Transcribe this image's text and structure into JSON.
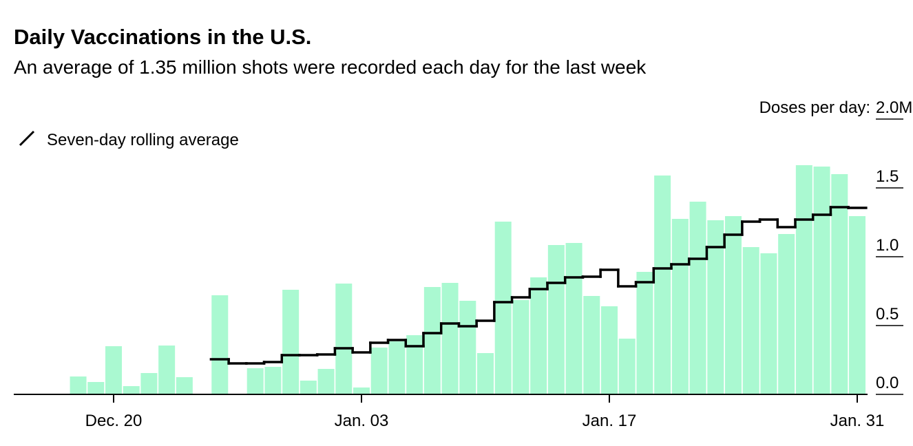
{
  "chart_data": {
    "type": "bar",
    "title": "Daily Vaccinations in the U.S.",
    "subtitle": "An average of 1.35 million shots were recorded each day for the last week",
    "y_axis_label": "Doses per day:",
    "categories": [
      null,
      null,
      "Dec. 20",
      null,
      null,
      null,
      null,
      null,
      null,
      null,
      null,
      null,
      null,
      null,
      null,
      null,
      "Jan. 03",
      null,
      null,
      null,
      null,
      null,
      null,
      null,
      null,
      null,
      null,
      null,
      null,
      null,
      "Jan. 17",
      null,
      null,
      null,
      null,
      null,
      null,
      null,
      null,
      null,
      null,
      null,
      null,
      null,
      "Jan. 31"
    ],
    "series": [
      {
        "type": "bar",
        "color": "#aaf9d1",
        "values": [
          0.13,
          0.09,
          0.35,
          0.06,
          0.155,
          0.355,
          0.125,
          null,
          0.72,
          null,
          0.19,
          0.2,
          0.76,
          0.1,
          0.185,
          0.805,
          0.05,
          0.34,
          0.385,
          0.43,
          0.78,
          0.81,
          0.68,
          0.3,
          1.255,
          0.685,
          0.85,
          1.085,
          1.1,
          0.715,
          0.64,
          0.405,
          0.89,
          1.59,
          1.275,
          1.4,
          1.265,
          1.295,
          1.07,
          1.025,
          1.165,
          1.665,
          1.655,
          1.6,
          1.295
        ]
      },
      {
        "type": "step",
        "name": "Seven-day rolling average",
        "color": "#000000",
        "values": [
          null,
          null,
          null,
          null,
          null,
          null,
          null,
          null,
          0.255,
          0.225,
          0.225,
          0.235,
          0.285,
          0.285,
          0.29,
          0.335,
          0.305,
          0.375,
          0.395,
          0.35,
          0.445,
          0.515,
          0.495,
          0.535,
          0.67,
          0.705,
          0.765,
          0.81,
          0.85,
          0.855,
          0.905,
          0.785,
          0.815,
          0.915,
          0.945,
          0.985,
          1.07,
          1.16,
          1.255,
          1.27,
          1.215,
          1.27,
          1.305,
          1.36,
          1.355
        ]
      }
    ],
    "ylim": [
      0,
      2
    ],
    "yticks": [
      {
        "value": 0,
        "label": "0.0"
      },
      0.5,
      {
        "value": 1,
        "label": "1.0"
      },
      1.5,
      {
        "value": 2,
        "label": "2.0M"
      }
    ]
  }
}
